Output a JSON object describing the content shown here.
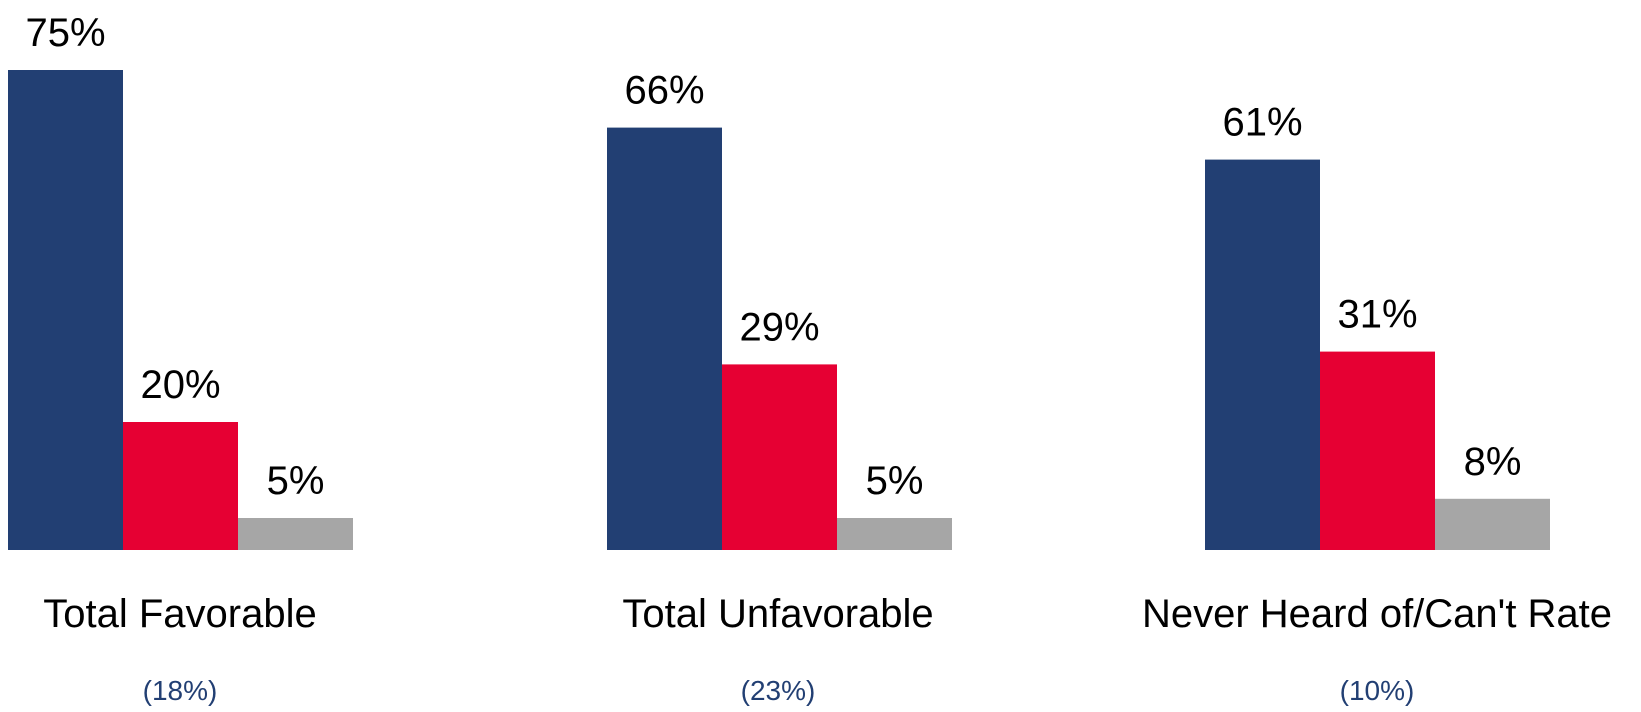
{
  "colors": {
    "series": [
      "#223f73",
      "#e60033",
      "#a6a6a6"
    ],
    "sub_label": "#223f73",
    "text": "#000000",
    "background": "#ffffff"
  },
  "chart_data": {
    "type": "bar",
    "categories": [
      "Total Favorable",
      "Total Unfavorable",
      "Never Heard of/Can't Rate"
    ],
    "category_subtitles": [
      "(18%)",
      "(23%)",
      "(10%)"
    ],
    "series": [
      {
        "values": [
          75,
          66,
          61
        ],
        "labels": [
          "75%",
          "66%",
          "61%"
        ]
      },
      {
        "values": [
          20,
          29,
          31
        ],
        "labels": [
          "20%",
          "29%",
          "31%"
        ]
      },
      {
        "values": [
          5,
          5,
          8
        ],
        "labels": [
          "5%",
          "5%",
          "8%"
        ]
      }
    ],
    "ylim": [
      0,
      100
    ],
    "grid": false,
    "legend": "none"
  }
}
